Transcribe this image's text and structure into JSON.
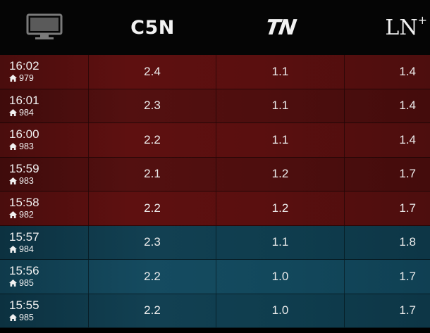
{
  "header": {
    "icon": "monitor-icon",
    "channels": [
      {
        "id": "c5n",
        "label": "C5N"
      },
      {
        "id": "tn",
        "label": "TN"
      },
      {
        "id": "ln",
        "label": "LN",
        "sup": "+"
      }
    ]
  },
  "colors": {
    "red_row": "#5a0f0f",
    "blue_row": "#154b60",
    "header_bg": "#050505"
  },
  "rows": [
    {
      "time": "16:02",
      "viewers": "979",
      "c5n": "2.4",
      "tn": "1.1",
      "ln": "1.4",
      "theme": "red"
    },
    {
      "time": "16:01",
      "viewers": "984",
      "c5n": "2.3",
      "tn": "1.1",
      "ln": "1.4",
      "theme": "red"
    },
    {
      "time": "16:00",
      "viewers": "983",
      "c5n": "2.2",
      "tn": "1.1",
      "ln": "1.4",
      "theme": "red"
    },
    {
      "time": "15:59",
      "viewers": "983",
      "c5n": "2.1",
      "tn": "1.2",
      "ln": "1.7",
      "theme": "red"
    },
    {
      "time": "15:58",
      "viewers": "982",
      "c5n": "2.2",
      "tn": "1.2",
      "ln": "1.7",
      "theme": "red"
    },
    {
      "time": "15:57",
      "viewers": "984",
      "c5n": "2.3",
      "tn": "1.1",
      "ln": "1.8",
      "theme": "blue"
    },
    {
      "time": "15:56",
      "viewers": "985",
      "c5n": "2.2",
      "tn": "1.0",
      "ln": "1.7",
      "theme": "blue"
    },
    {
      "time": "15:55",
      "viewers": "985",
      "c5n": "2.2",
      "tn": "1.0",
      "ln": "1.7",
      "theme": "blue"
    }
  ]
}
